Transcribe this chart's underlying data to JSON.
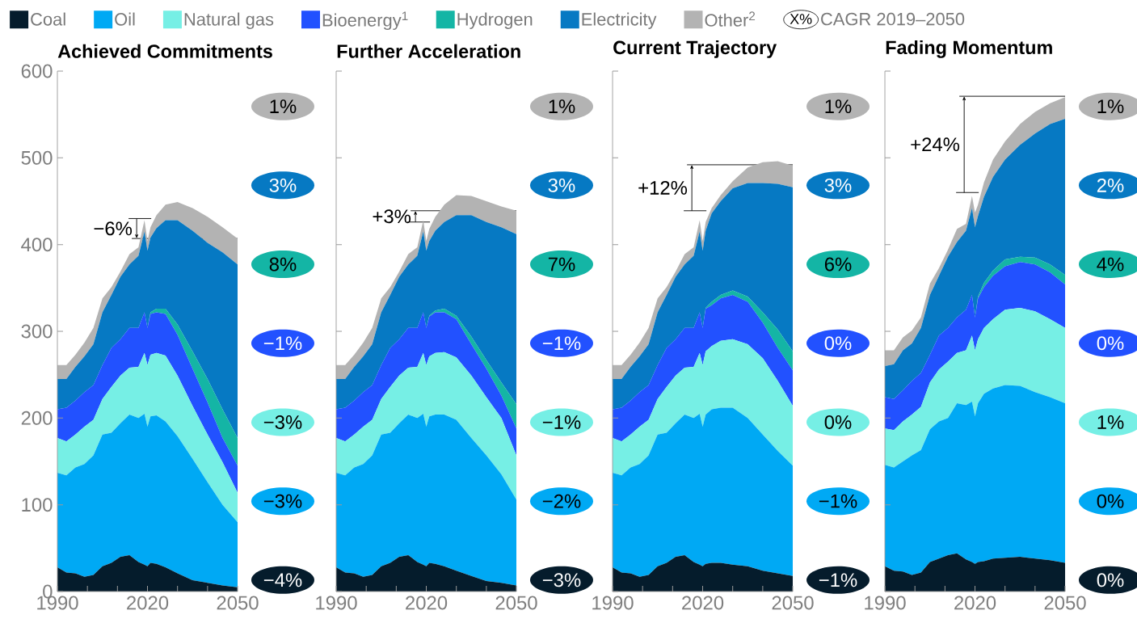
{
  "chart_data": [
    {
      "type": "area",
      "title": "Achieved Commitments",
      "stacked": true,
      "legend": "top",
      "x": [
        1990,
        1993,
        1996,
        1999,
        2002,
        2005,
        2008,
        2011,
        2014,
        2017,
        2019,
        2020,
        2021,
        2023,
        2026,
        2030,
        2035,
        2040,
        2045,
        2050
      ],
      "xlim": [
        1990,
        2050
      ],
      "ylim": [
        0,
        600
      ],
      "xticks": [
        1990,
        {
          "value": 2000,
          "label": null
        },
        {
          "value": 2010,
          "label": null
        },
        2020,
        {
          "value": 2030,
          "label": null
        },
        {
          "value": 2040,
          "label": null
        },
        2050
      ],
      "yticks": [
        0,
        100,
        200,
        300,
        400,
        500,
        600
      ],
      "series": [
        {
          "name": "Coal",
          "color": "#051C2C",
          "values": [
            28,
            22,
            21,
            17,
            19,
            29,
            33,
            40,
            42,
            34,
            31,
            29,
            33,
            32,
            28,
            21,
            13,
            10,
            7,
            5
          ]
        },
        {
          "name": "Oil",
          "color": "#00A9F4",
          "values": [
            109,
            112,
            122,
            130,
            138,
            152,
            150,
            154,
            162,
            166,
            174,
            161,
            169,
            171,
            168,
            158,
            140,
            116,
            93,
            75
          ]
        },
        {
          "name": "Natural gas",
          "color": "#76EFE5",
          "values": [
            40,
            39,
            38,
            43,
            41,
            41,
            53,
            55,
            54,
            59,
            70,
            71,
            71,
            72,
            76,
            70,
            61,
            55,
            49,
            34
          ]
        },
        {
          "name": "Bioenergy$^{1}$",
          "color": "#2251FF",
          "values": [
            33,
            39,
            39,
            40,
            40,
            39,
            45,
            42,
            46,
            45,
            47,
            43,
            47,
            47,
            48,
            47,
            43,
            37,
            28,
            31
          ]
        },
        {
          "name": "Hydrogen",
          "color": "#14B5A5",
          "values": [
            0,
            0,
            0,
            0,
            0,
            0,
            0,
            0,
            0,
            0,
            0,
            0,
            2,
            4,
            6,
            12,
            20,
            27,
            33,
            32
          ]
        },
        {
          "name": "Electricity",
          "color": "#0679C3",
          "values": [
            35,
            33,
            39,
            41,
            47,
            61,
            61,
            72,
            73,
            83,
            93,
            89,
            86,
            93,
            102,
            120,
            139,
            157,
            181,
            200
          ]
        },
        {
          "name": "Other$^{2}$",
          "color": "#B3B3B3",
          "values": [
            16,
            16,
            14,
            16,
            19,
            16,
            9,
            6,
            12,
            10,
            13,
            11,
            12,
            15,
            18,
            21,
            26,
            30,
            29,
            30
          ]
        }
      ],
      "ref_lines": [
        {
          "axis": "y",
          "value": 430
        },
        {
          "axis": "y",
          "value": 407
        }
      ],
      "annotations": [
        "−4%",
        "−3%",
        "−3%",
        "−1%",
        "8%",
        "3%",
        "1%",
        "−6%",
        "X%",
        "CAGR 2019–2050"
      ]
    },
    {
      "type": "area",
      "title": "Further Acceleration",
      "stacked": true,
      "tick_labels": "x",
      "x": [
        1990,
        1993,
        1996,
        1999,
        2002,
        2005,
        2008,
        2011,
        2014,
        2017,
        2019,
        2020,
        2021,
        2023,
        2026,
        2030,
        2035,
        2040,
        2045,
        2050
      ],
      "xlim": [
        1990,
        2050
      ],
      "ylim": [
        0,
        600
      ],
      "xticks": [
        1990,
        {
          "value": 2000,
          "label": null
        },
        {
          "value": 2010,
          "label": null
        },
        2020,
        {
          "value": 2030,
          "label": null
        },
        {
          "value": 2040,
          "label": null
        },
        2050
      ],
      "yticks": [
        0,
        100,
        200,
        300,
        400,
        500,
        600
      ],
      "series": [
        {
          "color": "#051C2C",
          "values": [
            28,
            22,
            21,
            17,
            19,
            29,
            33,
            40,
            42,
            34,
            31,
            29,
            33,
            32,
            29,
            24,
            18,
            12,
            10,
            7
          ]
        },
        {
          "color": "#00A9F4",
          "values": [
            109,
            112,
            122,
            130,
            138,
            152,
            150,
            154,
            162,
            166,
            174,
            161,
            169,
            172,
            175,
            174,
            159,
            145,
            125,
            99
          ]
        },
        {
          "color": "#76EFE5",
          "values": [
            40,
            39,
            38,
            43,
            41,
            41,
            53,
            55,
            54,
            59,
            70,
            71,
            69,
            71,
            72,
            72,
            72,
            67,
            65,
            51
          ]
        },
        {
          "color": "#2251FF",
          "values": [
            33,
            39,
            39,
            40,
            40,
            39,
            45,
            42,
            46,
            45,
            47,
            43,
            46,
            47,
            46,
            44,
            36,
            33,
            26,
            31
          ]
        },
        {
          "color": "#14B5A5",
          "values": [
            0,
            0,
            0,
            0,
            0,
            0,
            0,
            0,
            0,
            0,
            0,
            0,
            1,
            2,
            4,
            4,
            9,
            10,
            15,
            28
          ]
        },
        {
          "color": "#0679C3",
          "values": [
            35,
            33,
            39,
            41,
            47,
            61,
            61,
            72,
            73,
            83,
            93,
            89,
            86,
            92,
            100,
            116,
            140,
            159,
            179,
            196
          ]
        },
        {
          "color": "#B3B3B3",
          "values": [
            16,
            16,
            14,
            16,
            19,
            16,
            9,
            6,
            12,
            10,
            13,
            11,
            14,
            16,
            20,
            23,
            22,
            24,
            24,
            27
          ]
        }
      ],
      "ref_lines": [
        {
          "axis": "y",
          "value": 426
        },
        {
          "axis": "y",
          "value": 439
        }
      ],
      "annotations": [
        "−3%",
        "−2%",
        "−1%",
        "−1%",
        "7%",
        "3%",
        "1%",
        "+3%"
      ]
    },
    {
      "type": "area",
      "title": "Current Trajectory",
      "stacked": true,
      "tick_labels": "x",
      "x": [
        1990,
        1993,
        1996,
        1999,
        2002,
        2005,
        2008,
        2011,
        2014,
        2017,
        2019,
        2020,
        2021,
        2023,
        2026,
        2030,
        2035,
        2040,
        2045,
        2050
      ],
      "xlim": [
        1990,
        2050
      ],
      "ylim": [
        0,
        600
      ],
      "xticks": [
        1990,
        {
          "value": 2000,
          "label": null
        },
        {
          "value": 2010,
          "label": null
        },
        2020,
        {
          "value": 2030,
          "label": null
        },
        {
          "value": 2040,
          "label": null
        },
        2050
      ],
      "yticks": [
        0,
        100,
        200,
        300,
        400,
        500,
        600
      ],
      "series": [
        {
          "color": "#051C2C",
          "values": [
            28,
            22,
            21,
            17,
            19,
            29,
            33,
            40,
            42,
            34,
            31,
            29,
            32,
            33,
            33,
            31,
            29,
            24,
            21,
            18
          ]
        },
        {
          "color": "#00A9F4",
          "values": [
            109,
            112,
            122,
            130,
            138,
            152,
            150,
            154,
            162,
            166,
            174,
            161,
            172,
            177,
            179,
            181,
            171,
            157,
            141,
            127
          ]
        },
        {
          "color": "#76EFE5",
          "values": [
            40,
            39,
            38,
            43,
            41,
            41,
            53,
            55,
            54,
            59,
            70,
            71,
            73,
            73,
            77,
            79,
            85,
            88,
            81,
            69
          ]
        },
        {
          "color": "#2251FF",
          "values": [
            33,
            39,
            39,
            40,
            40,
            39,
            45,
            42,
            46,
            45,
            47,
            43,
            49,
            47,
            49,
            51,
            49,
            41,
            38,
            41
          ]
        },
        {
          "color": "#14B5A5",
          "values": [
            0,
            0,
            0,
            0,
            0,
            0,
            0,
            0,
            0,
            0,
            0,
            0,
            1,
            4,
            4,
            5,
            6,
            12,
            21,
            22
          ]
        },
        {
          "color": "#0679C3",
          "values": [
            35,
            33,
            39,
            41,
            47,
            61,
            61,
            72,
            73,
            83,
            93,
            89,
            89,
            102,
            108,
            118,
            131,
            149,
            168,
            189
          ]
        },
        {
          "color": "#B3B3B3",
          "values": [
            16,
            16,
            14,
            16,
            19,
            16,
            9,
            6,
            12,
            10,
            13,
            11,
            10,
            6,
            7,
            8,
            18,
            24,
            26,
            25
          ]
        }
      ],
      "ref_lines": [
        {
          "axis": "y",
          "value": 439
        },
        {
          "axis": "y",
          "value": 492
        }
      ],
      "annotations": [
        "−1%",
        "−1%",
        "0%",
        "0%",
        "6%",
        "3%",
        "1%",
        "+12%"
      ]
    },
    {
      "type": "area",
      "title": "Fading Momentum",
      "stacked": true,
      "tick_labels": "x",
      "x": [
        1990,
        1993,
        1996,
        1999,
        2002,
        2005,
        2008,
        2011,
        2014,
        2017,
        2019,
        2020,
        2021,
        2023,
        2026,
        2030,
        2035,
        2040,
        2045,
        2050
      ],
      "xlim": [
        1990,
        2050
      ],
      "ylim": [
        0,
        600
      ],
      "xticks": [
        1990,
        {
          "value": 2000,
          "label": null
        },
        {
          "value": 2010,
          "label": null
        },
        2020,
        {
          "value": 2030,
          "label": null
        },
        {
          "value": 2040,
          "label": null
        },
        2050
      ],
      "yticks": [
        0,
        100,
        200,
        300,
        400,
        500,
        600
      ],
      "series": [
        {
          "color": "#051C2C",
          "values": [
            29,
            24,
            23,
            19,
            22,
            34,
            38,
            42,
            44,
            37,
            34,
            32,
            34,
            35,
            38,
            39,
            40,
            38,
            36,
            33
          ]
        },
        {
          "color": "#00A9F4",
          "values": [
            117,
            119,
            127,
            138,
            141,
            153,
            158,
            158,
            173,
            178,
            185,
            170,
            183,
            193,
            196,
            199,
            197,
            192,
            188,
            184
          ]
        },
        {
          "color": "#76EFE5",
          "values": [
            42,
            43,
            46,
            47,
            50,
            54,
            60,
            65,
            58,
            63,
            76,
            76,
            74,
            76,
            80,
            87,
            90,
            93,
            90,
            87
          ]
        },
        {
          "color": "#2251FF",
          "values": [
            36,
            36,
            36,
            39,
            39,
            32,
            39,
            39,
            41,
            47,
            47,
            38,
            47,
            47,
            50,
            50,
            53,
            54,
            54,
            50
          ]
        },
        {
          "color": "#14B5A5",
          "values": [
            0,
            0,
            0,
            0,
            0,
            0,
            0,
            0,
            0,
            0,
            0,
            0,
            2,
            5,
            6,
            8,
            6,
            8,
            9,
            11
          ]
        },
        {
          "color": "#0679C3",
          "values": [
            36,
            40,
            46,
            43,
            52,
            69,
            69,
            82,
            87,
            91,
            100,
            104,
            93,
            99,
            108,
            115,
            129,
            143,
            162,
            180
          ]
        },
        {
          "color": "#B3B3B3",
          "values": [
            18,
            16,
            15,
            15,
            12,
            13,
            9,
            8,
            15,
            8,
            14,
            17,
            13,
            17,
            20,
            21,
            24,
            25,
            24,
            25
          ]
        }
      ],
      "ref_lines": [
        {
          "axis": "y",
          "value": 460
        },
        {
          "axis": "y",
          "value": 571
        }
      ],
      "annotations": [
        "0%",
        "0%",
        "1%",
        "0%",
        "4%",
        "2%",
        "1%",
        "+24%"
      ]
    }
  ]
}
